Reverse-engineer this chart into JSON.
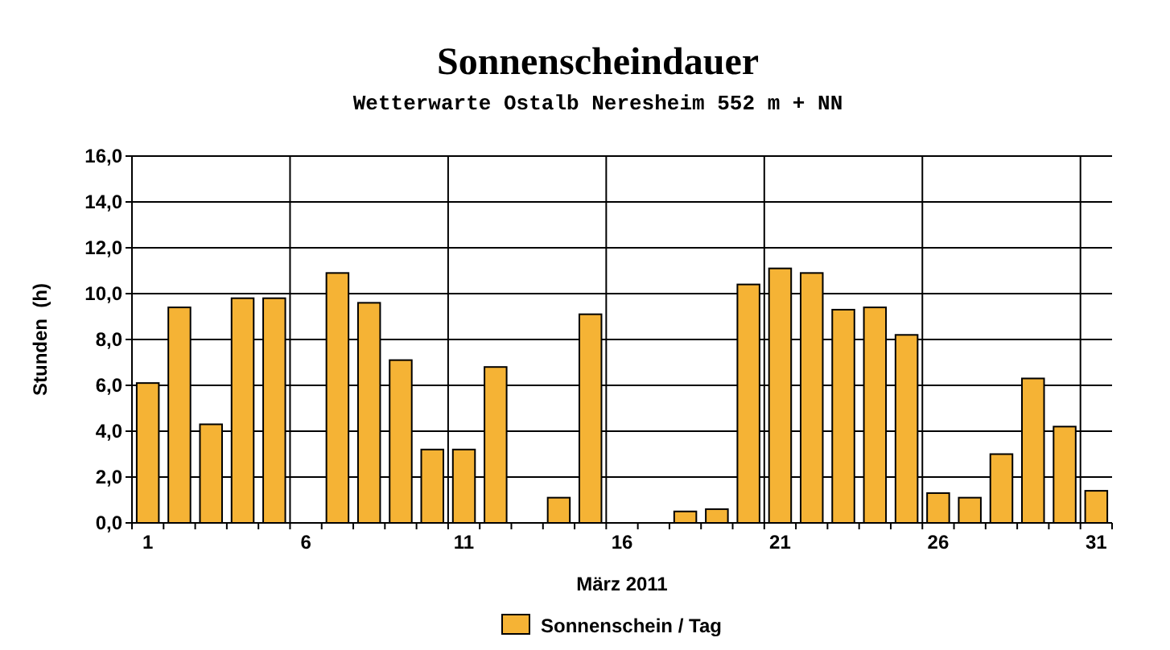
{
  "chart_data": {
    "type": "bar",
    "title": "Sonnenscheindauer",
    "subtitle": "Wetterwarte Ostalb Neresheim 552 m + NN",
    "xlabel": "März 2011",
    "ylabel": "Stunden  (h)",
    "categories": [
      "1",
      null,
      null,
      null,
      null,
      "6",
      null,
      null,
      null,
      null,
      "11",
      null,
      null,
      null,
      null,
      "16",
      null,
      null,
      null,
      null,
      "21",
      null,
      null,
      null,
      null,
      "26",
      null,
      null,
      null,
      null,
      "31"
    ],
    "series": [
      {
        "name": "Sonnenschein / Tag",
        "color": "#f5b335",
        "values": [
          6.1,
          9.4,
          4.3,
          9.8,
          9.8,
          0,
          10.9,
          9.6,
          7.1,
          3.2,
          3.2,
          6.8,
          0,
          1.1,
          9.1,
          0,
          0,
          0.5,
          0.6,
          10.4,
          11.1,
          10.9,
          9.3,
          9.4,
          8.2,
          1.3,
          1.1,
          3.0,
          6.3,
          4.2,
          1.4
        ]
      }
    ],
    "ylim": [
      0,
      16
    ],
    "yticks": [
      {
        "value": 0,
        "label": "0,0"
      },
      {
        "value": 2,
        "label": "2,0"
      },
      {
        "value": 4,
        "label": "4,0"
      },
      {
        "value": 6,
        "label": "6,0"
      },
      {
        "value": 8,
        "label": "8,0"
      },
      {
        "value": 10,
        "label": "10,0"
      },
      {
        "value": 12,
        "label": "12,0"
      },
      {
        "value": 14,
        "label": "14,0"
      },
      {
        "value": 16,
        "label": "16,0"
      }
    ],
    "grid": true,
    "legend": "bottom"
  }
}
